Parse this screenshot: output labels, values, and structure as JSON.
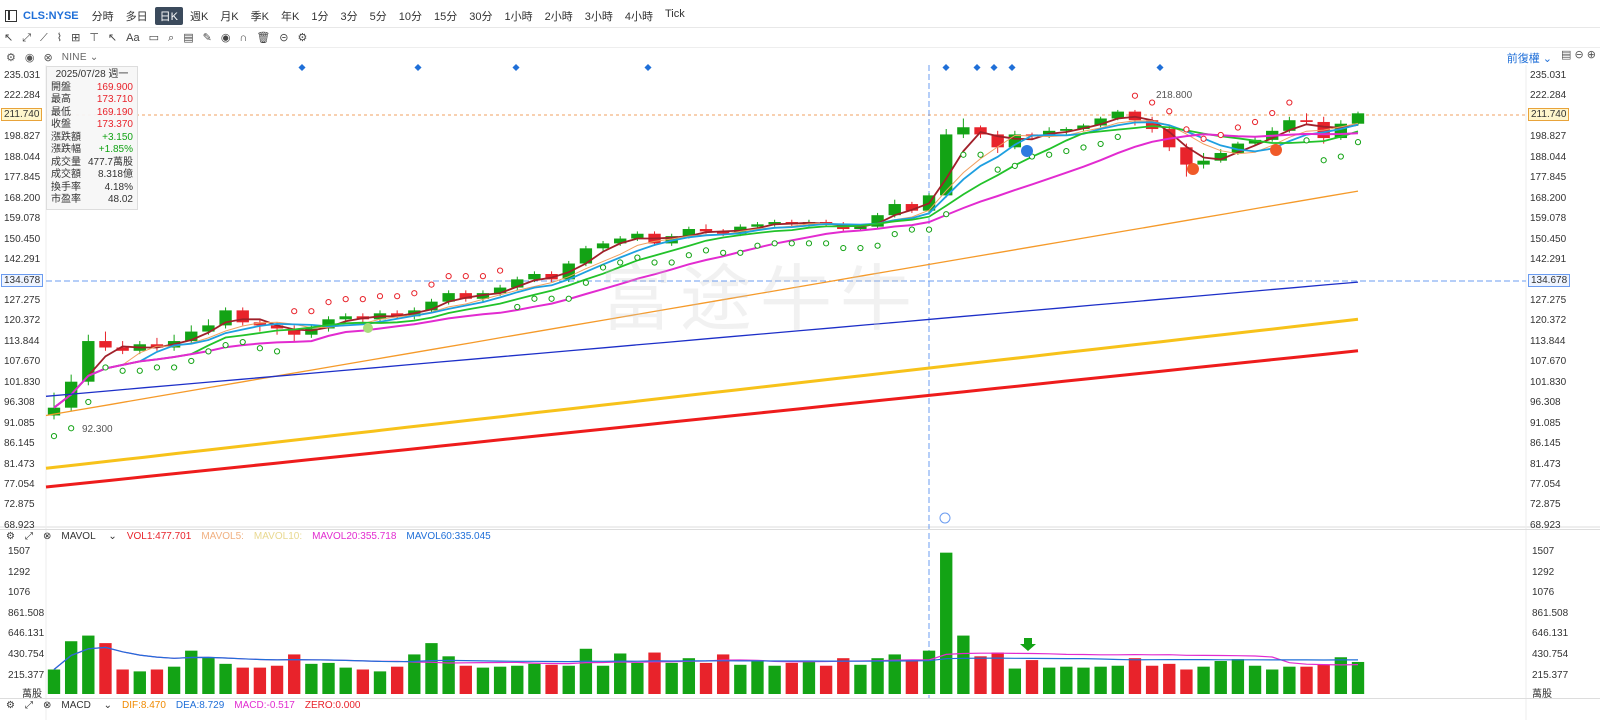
{
  "header": {
    "ticker": "CLS:NYSE",
    "periods": [
      "分時",
      "多日",
      "日K",
      "週K",
      "月K",
      "季K",
      "年K",
      "1分",
      "3分",
      "5分",
      "10分",
      "15分",
      "30分",
      "1小時",
      "2小時",
      "3小時",
      "4小時",
      "Tick"
    ],
    "active_period": "日K"
  },
  "toolbar": {
    "tools": [
      "↖",
      "⤢",
      "⟋",
      "⌇",
      "⊞",
      "⊤",
      "↖",
      "Aa",
      "▭",
      "⌕",
      "▤",
      "✎",
      "◉",
      "∩",
      "🗑",
      "⊝",
      "⚙"
    ]
  },
  "indicator_bar": {
    "label": "NINE",
    "fuquan": "前復權"
  },
  "ohlc": {
    "date": "2025/07/28 週一",
    "rows": [
      {
        "k": "開盤",
        "v": "169.900",
        "c": "red"
      },
      {
        "k": "最高",
        "v": "173.710",
        "c": "red"
      },
      {
        "k": "最低",
        "v": "169.190",
        "c": "red"
      },
      {
        "k": "收盤",
        "v": "173.370",
        "c": "red"
      },
      {
        "k": "漲跌額",
        "v": "+3.150",
        "c": "green"
      },
      {
        "k": "漲跌幅",
        "v": "+1.85%",
        "c": "green"
      },
      {
        "k": "成交量",
        "v": "477.7萬股",
        "c": ""
      },
      {
        "k": "成交額",
        "v": "8.318億",
        "c": ""
      },
      {
        "k": "換手率",
        "v": "4.18%",
        "c": ""
      },
      {
        "k": "市盈率",
        "v": "48.02",
        "c": ""
      }
    ]
  },
  "price_axis": [
    "235.031",
    "222.284",
    "211.740",
    "198.827",
    "188.044",
    "177.845",
    "168.200",
    "159.078",
    "150.450",
    "142.291",
    "134.678",
    "127.275",
    "120.372",
    "113.844",
    "107.670",
    "101.830",
    "96.308",
    "91.085",
    "86.145",
    "81.473",
    "77.054",
    "72.875",
    "68.923"
  ],
  "current_price": "211.740",
  "crosshair_price": "134.678",
  "annotations": {
    "high": "218.800",
    "low": "92.300"
  },
  "mavol": {
    "label": "MAVOL",
    "vol1": "VOL1:477.701",
    "mavol5": "MAVOL5:",
    "mavol10": "MAVOL10:",
    "mavol20": "MAVOL20:355.718",
    "mavol60": "MAVOL60:335.045"
  },
  "vol_axis": [
    "1507",
    "1292",
    "1076",
    "861.508",
    "646.131",
    "430.754",
    "215.377"
  ],
  "vol_unit": "萬股",
  "macd": {
    "label": "MACD",
    "dif": "DIF:8.470",
    "dea": "DEA:8.729",
    "macd": "MACD:-0.517",
    "zero": "ZERO:0.000"
  },
  "colors": {
    "up": "#e8232b",
    "down": "#13a315",
    "accent": "#1f6fd8"
  },
  "chart_data": {
    "type": "candlestick",
    "candles": [
      [
        92,
        94,
        98,
        91
      ],
      [
        94,
        101,
        103,
        93
      ],
      [
        101,
        113,
        115,
        100
      ],
      [
        113,
        111,
        116,
        110
      ],
      [
        111,
        110,
        113,
        109
      ],
      [
        110,
        112,
        113,
        109
      ],
      [
        112,
        111,
        114,
        110
      ],
      [
        111,
        113,
        115,
        110
      ],
      [
        113,
        116,
        118,
        112
      ],
      [
        116,
        118,
        120,
        115
      ],
      [
        118,
        123,
        124,
        117
      ],
      [
        123,
        119,
        124,
        118
      ],
      [
        119,
        118,
        120,
        116
      ],
      [
        118,
        117,
        119,
        115
      ],
      [
        117,
        115,
        118,
        113
      ],
      [
        115,
        117,
        118,
        114
      ],
      [
        117,
        120,
        121,
        116
      ],
      [
        120,
        121,
        122,
        119
      ],
      [
        121,
        120,
        122,
        119
      ],
      [
        120,
        122,
        123,
        119
      ],
      [
        122,
        121,
        123,
        120
      ],
      [
        121,
        123,
        124,
        120
      ],
      [
        123,
        126,
        127,
        122
      ],
      [
        126,
        129,
        130,
        125
      ],
      [
        129,
        127,
        130,
        126
      ],
      [
        127,
        129,
        130,
        126
      ],
      [
        129,
        131,
        132,
        128
      ],
      [
        131,
        134,
        135,
        130
      ],
      [
        134,
        136,
        137,
        133
      ],
      [
        136,
        134,
        137,
        133
      ],
      [
        134,
        140,
        141,
        133
      ],
      [
        140,
        146,
        147,
        139
      ],
      [
        146,
        148,
        149,
        145
      ],
      [
        148,
        150,
        151,
        147
      ],
      [
        150,
        152,
        153,
        149
      ],
      [
        152,
        148,
        153,
        147
      ],
      [
        148,
        151,
        152,
        147
      ],
      [
        151,
        154,
        155,
        150
      ],
      [
        154,
        153,
        156,
        152
      ],
      [
        153,
        152,
        154,
        151
      ],
      [
        152,
        155,
        156,
        151
      ],
      [
        155,
        156,
        157,
        154
      ],
      [
        156,
        157,
        158,
        155
      ],
      [
        157,
        156,
        158,
        155
      ],
      [
        156,
        157,
        158,
        155
      ],
      [
        157,
        156,
        158,
        155
      ],
      [
        156,
        154,
        157,
        153
      ],
      [
        154,
        155,
        156,
        153
      ],
      [
        155,
        160,
        161,
        154
      ],
      [
        160,
        165,
        167,
        159
      ],
      [
        165,
        162,
        166,
        161
      ],
      [
        162,
        169,
        170,
        161
      ],
      [
        169,
        200,
        203,
        168
      ],
      [
        200,
        204,
        209,
        198
      ],
      [
        204,
        200,
        205,
        198
      ],
      [
        200,
        193,
        202,
        190
      ],
      [
        193,
        200,
        202,
        192
      ],
      [
        200,
        199,
        201,
        197
      ],
      [
        199,
        202,
        204,
        198
      ],
      [
        202,
        203,
        204,
        200
      ],
      [
        203,
        205,
        206,
        202
      ],
      [
        205,
        209,
        210,
        204
      ],
      [
        209,
        213,
        214,
        208
      ],
      [
        213,
        208,
        214,
        205
      ],
      [
        208,
        203,
        210,
        201
      ],
      [
        203,
        193,
        205,
        191
      ],
      [
        193,
        184,
        195,
        178
      ],
      [
        184,
        186,
        190,
        182
      ],
      [
        186,
        190,
        192,
        185
      ],
      [
        190,
        195,
        196,
        189
      ],
      [
        195,
        197,
        199,
        194
      ],
      [
        197,
        202,
        204,
        196
      ],
      [
        202,
        208,
        210,
        201
      ],
      [
        208,
        207,
        212,
        206
      ],
      [
        207,
        198,
        210,
        195
      ],
      [
        198,
        206,
        208,
        197
      ],
      [
        206,
        212,
        213,
        205
      ]
    ]
  }
}
